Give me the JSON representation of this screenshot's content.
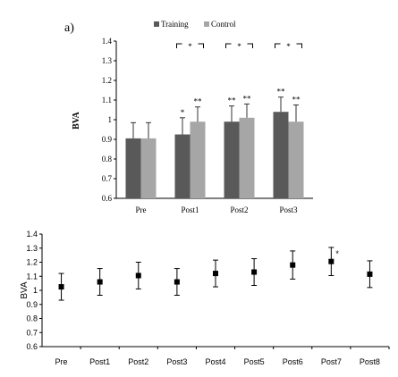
{
  "figure_label": "a)",
  "chart_data": [
    {
      "type": "bar",
      "ylabel": "BVA",
      "xlabel": "",
      "categories": [
        "Pre",
        "Post1",
        "Post2",
        "Post3"
      ],
      "ylim": [
        0.6,
        1.4
      ],
      "yticks": [
        "0.6",
        "0.7",
        "0.8",
        "0.9",
        "1",
        "1.1",
        "1.2",
        "1.3",
        "1.4"
      ],
      "grid": false,
      "legend_position": "top",
      "series": [
        {
          "name": "Training",
          "color": "#595959",
          "values": [
            0.905,
            0.925,
            0.99,
            1.04
          ],
          "error": [
            0.08,
            0.085,
            0.08,
            0.075
          ],
          "marks": [
            "",
            "*",
            "**",
            "**"
          ]
        },
        {
          "name": "Control",
          "color": "#a6a6a6",
          "values": [
            0.905,
            0.99,
            1.01,
            0.99
          ],
          "error": [
            0.08,
            0.075,
            0.07,
            0.085
          ],
          "marks": [
            "",
            "**",
            "**",
            "**"
          ]
        }
      ],
      "between_group_marks": [
        "",
        "*",
        "*",
        "*"
      ]
    },
    {
      "type": "scatter",
      "ylabel": "BVA",
      "xlabel": "",
      "categories": [
        "Pre",
        "Post1",
        "Post2",
        "Post3",
        "Post4",
        "Post5",
        "Post6",
        "Post7",
        "Post8"
      ],
      "ylim": [
        0.6,
        1.4
      ],
      "yticks": [
        "0.6",
        "0.7",
        "0.8",
        "0.9",
        "1",
        "1.1",
        "1.2",
        "1.3",
        "1.4"
      ],
      "grid": false,
      "values": [
        1.025,
        1.06,
        1.105,
        1.06,
        1.12,
        1.13,
        1.18,
        1.205,
        1.115
      ],
      "error": [
        0.095,
        0.095,
        0.095,
        0.095,
        0.095,
        0.095,
        0.1,
        0.1,
        0.095
      ],
      "marks": [
        "",
        "",
        "",
        "",
        "",
        "",
        "",
        "*",
        ""
      ]
    }
  ]
}
